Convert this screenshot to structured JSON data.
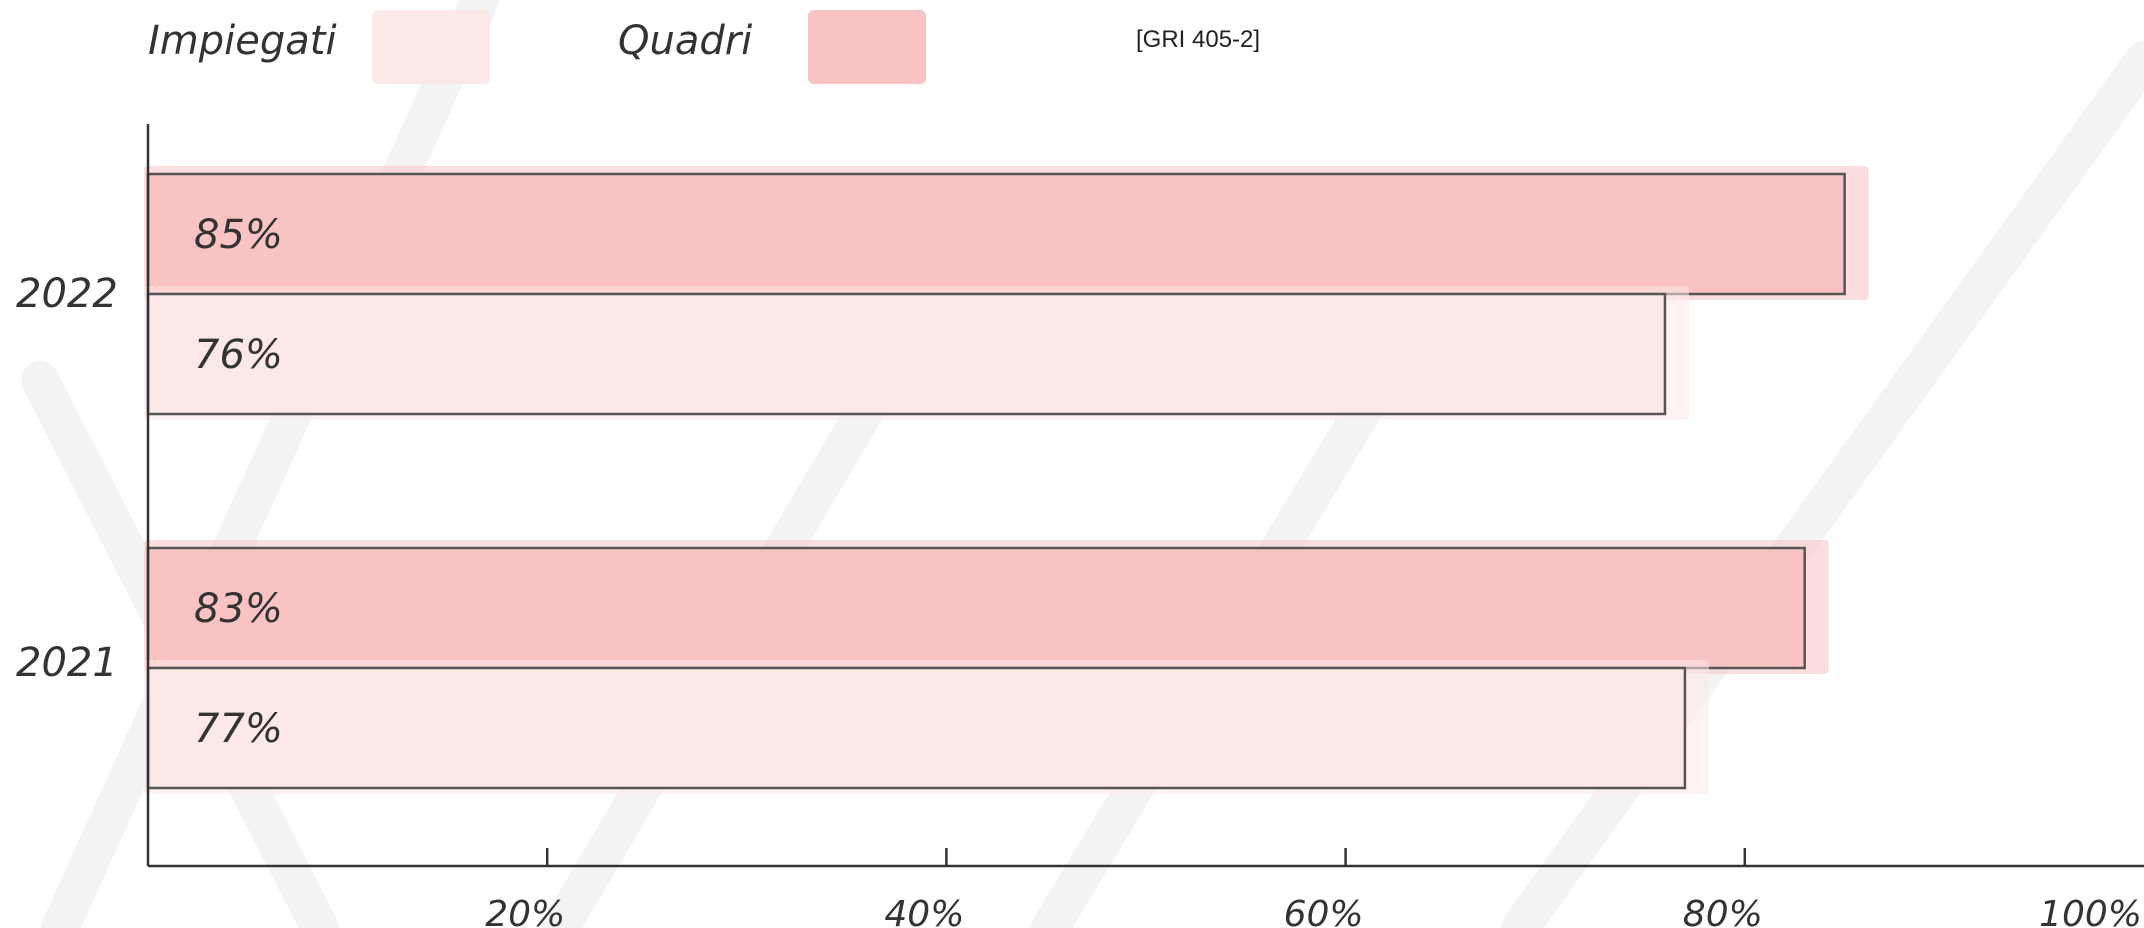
{
  "legend": {
    "items": [
      {
        "label": "Impiegati",
        "color": "#fde8e8"
      },
      {
        "label": "Quadri",
        "color": "#f9c3c3"
      }
    ]
  },
  "note": "[GRI 405-2]",
  "chart_data": {
    "type": "bar",
    "orientation": "horizontal",
    "categories": [
      "2022",
      "2021"
    ],
    "series": [
      {
        "name": "Quadri",
        "values": [
          85,
          83
        ],
        "value_labels": [
          "85%",
          "83%"
        ],
        "color": "#f9c3c3"
      },
      {
        "name": "Impiegati",
        "values": [
          76,
          77
        ],
        "value_labels": [
          "76%",
          "77%"
        ],
        "color": "#fde8e8"
      }
    ],
    "xlim": [
      0,
      100
    ],
    "xticks": [
      20,
      40,
      60,
      80,
      100
    ],
    "xtick_labels": [
      "20%",
      "40%",
      "60%",
      "80%",
      "100%"
    ],
    "grid": false,
    "legend_position": "top-left"
  }
}
